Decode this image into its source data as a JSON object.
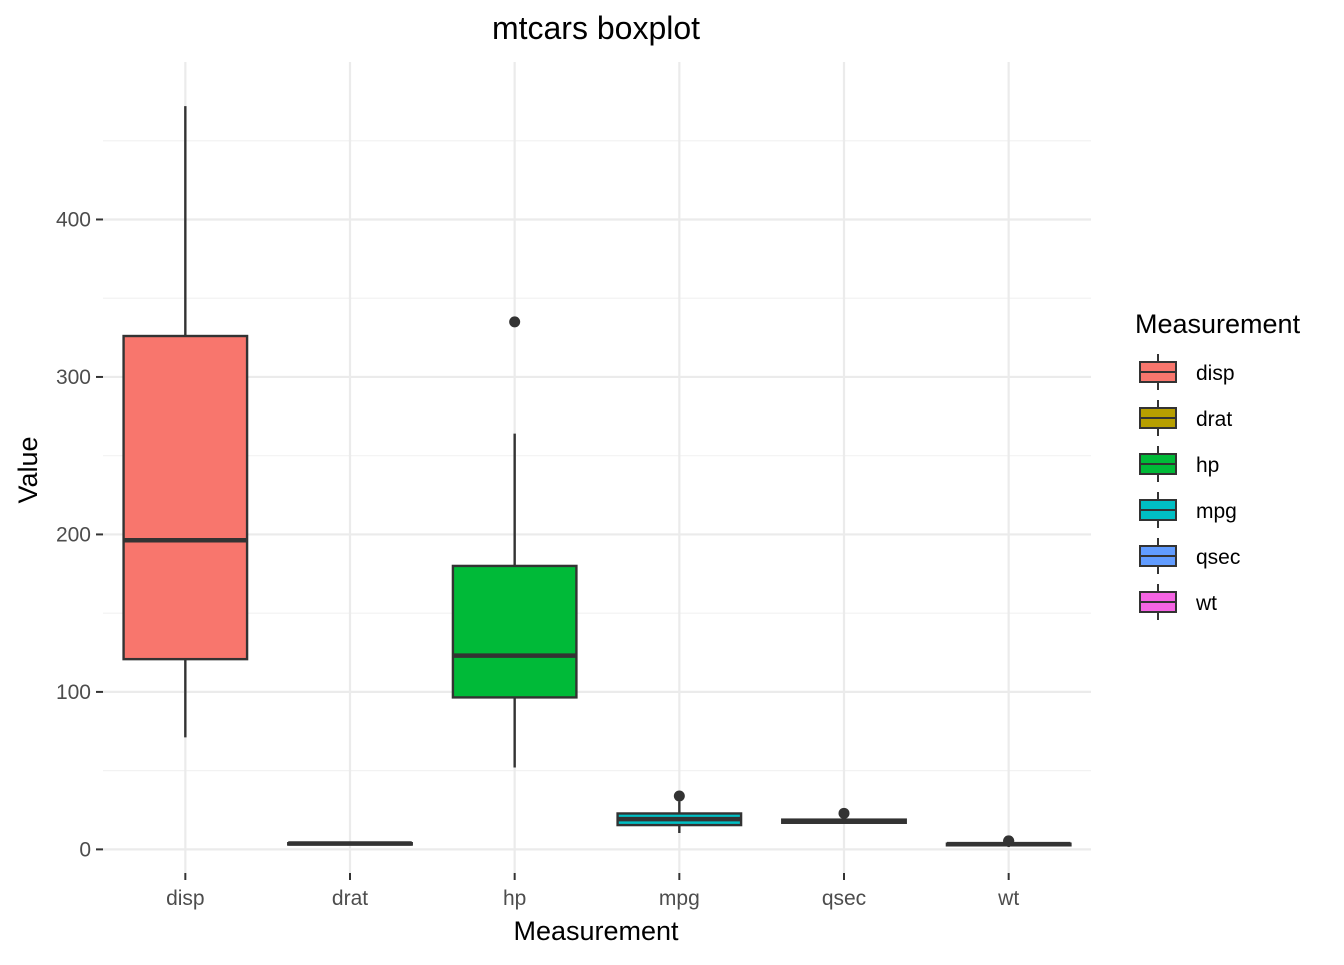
{
  "chart_data": {
    "type": "boxplot",
    "title": "mtcars boxplot",
    "xlabel": "Measurement",
    "ylabel": "Value",
    "ylim": [
      -15,
      500
    ],
    "yticks": [
      0,
      100,
      200,
      300,
      400
    ],
    "ytick_labels": [
      "0",
      "100",
      "200",
      "300",
      "400"
    ],
    "grid": true,
    "legend": {
      "title": "Measurement",
      "placement": "right"
    },
    "categories": [
      "disp",
      "drat",
      "hp",
      "mpg",
      "qsec",
      "wt"
    ],
    "series": [
      {
        "name": "disp",
        "color": "#F8766D",
        "whisker_low": 71.1,
        "q1": 120.8,
        "median": 196.3,
        "q3": 326.0,
        "whisker_high": 472.0,
        "outliers": []
      },
      {
        "name": "drat",
        "color": "#B79F00",
        "whisker_low": 2.76,
        "q1": 3.08,
        "median": 3.695,
        "q3": 3.92,
        "whisker_high": 4.93,
        "outliers": []
      },
      {
        "name": "hp",
        "color": "#00BA38",
        "whisker_low": 52,
        "q1": 96.5,
        "median": 123,
        "q3": 180,
        "whisker_high": 264,
        "outliers": [
          335
        ]
      },
      {
        "name": "mpg",
        "color": "#00BFC4",
        "whisker_low": 10.4,
        "q1": 15.43,
        "median": 19.2,
        "q3": 22.8,
        "whisker_high": 30.4,
        "outliers": [
          33.9
        ]
      },
      {
        "name": "qsec",
        "color": "#619CFF",
        "whisker_low": 16.7,
        "q1": 16.89,
        "median": 17.71,
        "q3": 18.9,
        "whisker_high": 20.22,
        "outliers": [
          22.9
        ]
      },
      {
        "name": "wt",
        "color": "#F564E3",
        "whisker_low": 1.513,
        "q1": 2.58,
        "median": 3.325,
        "q3": 3.61,
        "whisker_high": 5.25,
        "outliers": [
          5.345,
          5.424
        ]
      }
    ]
  }
}
